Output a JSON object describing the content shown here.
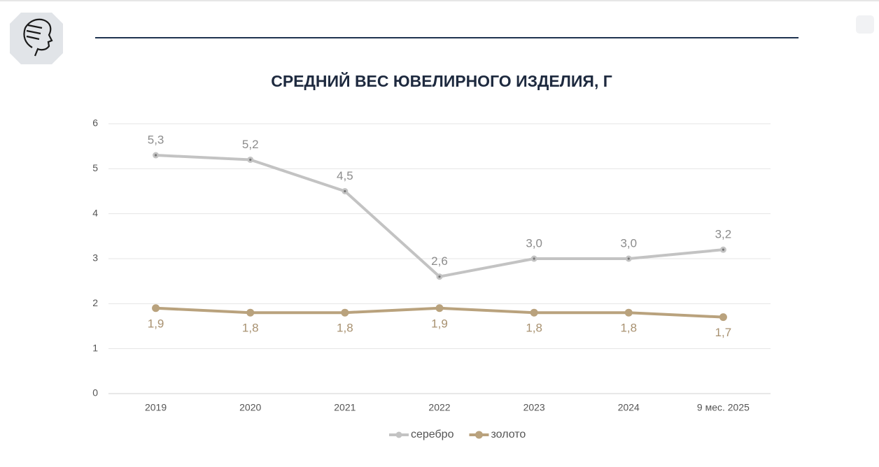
{
  "chart_data": {
    "type": "line",
    "title": "СРЕДНИЙ ВЕС ЮВЕЛИРНОГО ИЗДЕЛИЯ, Г",
    "categories": [
      "2019",
      "2020",
      "2021",
      "2022",
      "2023",
      "2024",
      "9 мес. 2025"
    ],
    "series": [
      {
        "name": "серебро",
        "color": "#c3c3c3",
        "values": [
          5.3,
          5.2,
          4.5,
          2.6,
          3.0,
          3.0,
          3.2
        ],
        "value_labels": [
          "5,3",
          "5,2",
          "4,5",
          "2,6",
          "3,0",
          "3,0",
          "3,2"
        ]
      },
      {
        "name": "золото",
        "color": "#b9a27d",
        "values": [
          1.9,
          1.8,
          1.8,
          1.9,
          1.8,
          1.8,
          1.7
        ],
        "value_labels": [
          "1,9",
          "1,8",
          "1,8",
          "1,9",
          "1,8",
          "1,8",
          "1,7"
        ]
      }
    ],
    "ylim": [
      0,
      6
    ],
    "yticks": [
      0,
      1,
      2,
      3,
      4,
      5,
      6
    ],
    "grid": true,
    "legend": "bottom"
  }
}
